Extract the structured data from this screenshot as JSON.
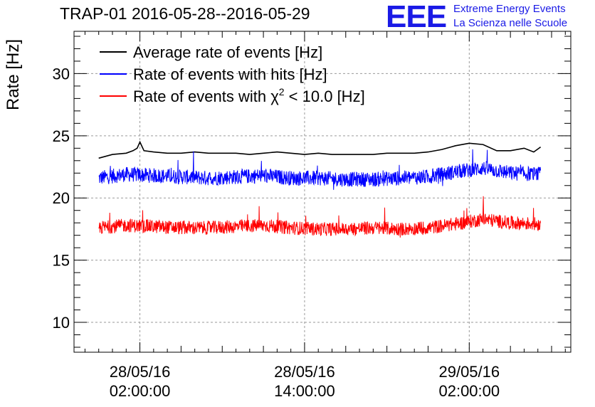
{
  "header": {
    "title": "TRAP-01 2016-05-28--2016-05-29",
    "logo_mark": "EEE",
    "logo_line1": "Extreme Energy Events",
    "logo_line2": "La Scienza nelle Scuole"
  },
  "colors": {
    "average": "#000000",
    "hits": "#0000ff",
    "chi2": "#ff0000",
    "grid": "#9a9a9a",
    "logo": "#1a1ae6"
  },
  "chart_data": {
    "type": "line",
    "title": "TRAP-01 2016-05-28--2016-05-29",
    "ylabel": "Rate [Hz]",
    "xlabel": "",
    "x_unit": "hours since 2016-05-28 00:00",
    "xlim": [
      -2.8,
      33.4
    ],
    "ylim": [
      7.6,
      33.4
    ],
    "grid": true,
    "legend_position": "top-left",
    "x_ticks": [
      {
        "x": 2,
        "line1": "28/05/16",
        "line2": "02:00:00"
      },
      {
        "x": 14,
        "line1": "28/05/16",
        "line2": "14:00:00"
      },
      {
        "x": 26,
        "line1": "29/05/16",
        "line2": "02:00:00"
      }
    ],
    "y_ticks": [
      10,
      15,
      20,
      25,
      30
    ],
    "series": [
      {
        "name": "Average rate of events [Hz]",
        "color": "#000000",
        "style": "smooth",
        "x": [
          -1,
          0,
          1,
          1.5,
          1.8,
          2.0,
          2.3,
          3,
          4,
          5,
          6,
          7,
          8,
          9,
          10,
          11,
          12,
          13,
          14,
          15,
          16,
          17,
          18,
          19,
          20,
          21,
          22,
          23,
          24,
          25,
          26,
          27,
          28,
          29,
          30,
          30.7,
          31.2
        ],
        "y": [
          23.2,
          23.5,
          23.6,
          23.8,
          24.0,
          24.5,
          23.8,
          23.7,
          23.6,
          23.6,
          23.7,
          23.6,
          23.6,
          23.6,
          23.5,
          23.6,
          23.7,
          23.6,
          23.5,
          23.6,
          23.5,
          23.5,
          23.5,
          23.5,
          23.6,
          23.6,
          23.6,
          23.7,
          23.9,
          24.2,
          24.4,
          24.3,
          23.8,
          23.8,
          24.0,
          23.7,
          24.1
        ]
      },
      {
        "name": "Rate of events with hits [Hz]",
        "color": "#0000ff",
        "style": "noisy",
        "x": [
          -1,
          1,
          3,
          5,
          7,
          9,
          11,
          13,
          15,
          17,
          19,
          21,
          23,
          25,
          27,
          29,
          31.2
        ],
        "y": [
          21.6,
          21.9,
          21.8,
          21.7,
          21.6,
          21.7,
          21.8,
          21.6,
          21.6,
          21.5,
          21.5,
          21.6,
          21.7,
          22.1,
          22.4,
          22.0,
          21.9
        ],
        "noise_amplitude": 0.6,
        "spike_max": 1.2
      },
      {
        "name": "Rate of events with χ² < 10.0 [Hz]",
        "color": "#ff0000",
        "style": "noisy",
        "x": [
          -1,
          1,
          3,
          5,
          7,
          9,
          11,
          13,
          15,
          17,
          19,
          21,
          23,
          25,
          27,
          29,
          31.2
        ],
        "y": [
          17.6,
          17.8,
          17.7,
          17.6,
          17.6,
          17.7,
          17.8,
          17.6,
          17.5,
          17.5,
          17.6,
          17.5,
          17.6,
          17.9,
          18.3,
          18.0,
          17.9
        ],
        "noise_amplitude": 0.55,
        "spike_max": 1.1
      }
    ],
    "legend": [
      {
        "label_main": "Average rate of events [Hz]",
        "color": "#000000"
      },
      {
        "label_main": "Rate of events with hits [Hz]",
        "color": "#0000ff"
      },
      {
        "label_main": "Rate of events with χ",
        "superscript": "2",
        "label_tail": " < 10.0 [Hz]",
        "color": "#ff0000"
      }
    ]
  }
}
